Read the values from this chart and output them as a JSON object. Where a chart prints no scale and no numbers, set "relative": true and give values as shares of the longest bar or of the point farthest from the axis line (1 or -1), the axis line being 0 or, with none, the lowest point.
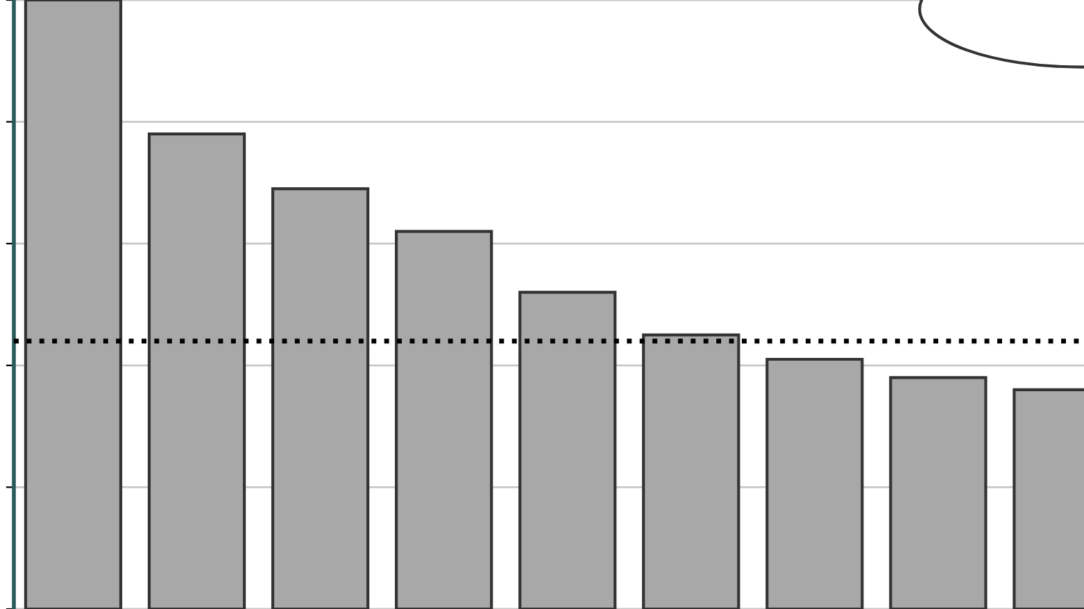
{
  "chart_data": {
    "type": "bar",
    "relative": true,
    "categories": [
      null,
      null,
      null,
      null,
      null,
      null,
      null,
      null,
      null
    ],
    "values": [
      1,
      0.78,
      0.69,
      0.62,
      0.52,
      0.45,
      0.41,
      0.38,
      0.36
    ],
    "color": "#a8a8a8",
    "ref_lines": [
      {
        "axis": "y",
        "value": 0.44,
        "color": "#000000",
        "line_style": "dotted"
      }
    ],
    "grid": "y"
  }
}
